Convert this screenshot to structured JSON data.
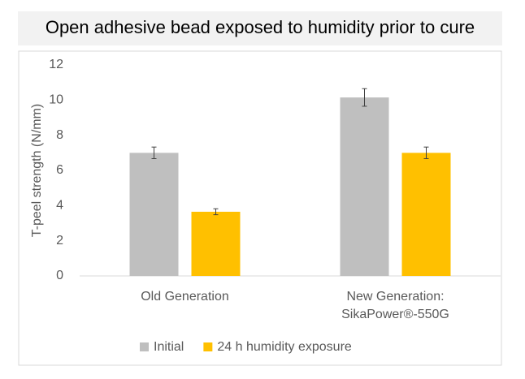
{
  "chart_data": {
    "type": "bar",
    "title": "Open adhesive bead exposed to humidity prior to cure",
    "y_label": "T-peel strength (N/mm)",
    "categories": [
      "Old Generation",
      "New Generation:\nSikaPower®-550G"
    ],
    "series": [
      {
        "name": "Initial",
        "color": "#bfbfbf",
        "values": [
          7.0,
          10.15
        ],
        "errors": [
          0.33,
          0.5
        ]
      },
      {
        "name": "24 h humidity exposure",
        "color": "#ffc000",
        "values": [
          3.65,
          7.0
        ],
        "errors": [
          0.17,
          0.33
        ]
      }
    ],
    "ylim": [
      0,
      12
    ],
    "yticks": [
      0,
      2,
      4,
      6,
      8,
      10,
      12
    ],
    "grid": false,
    "legend": "bottom"
  }
}
